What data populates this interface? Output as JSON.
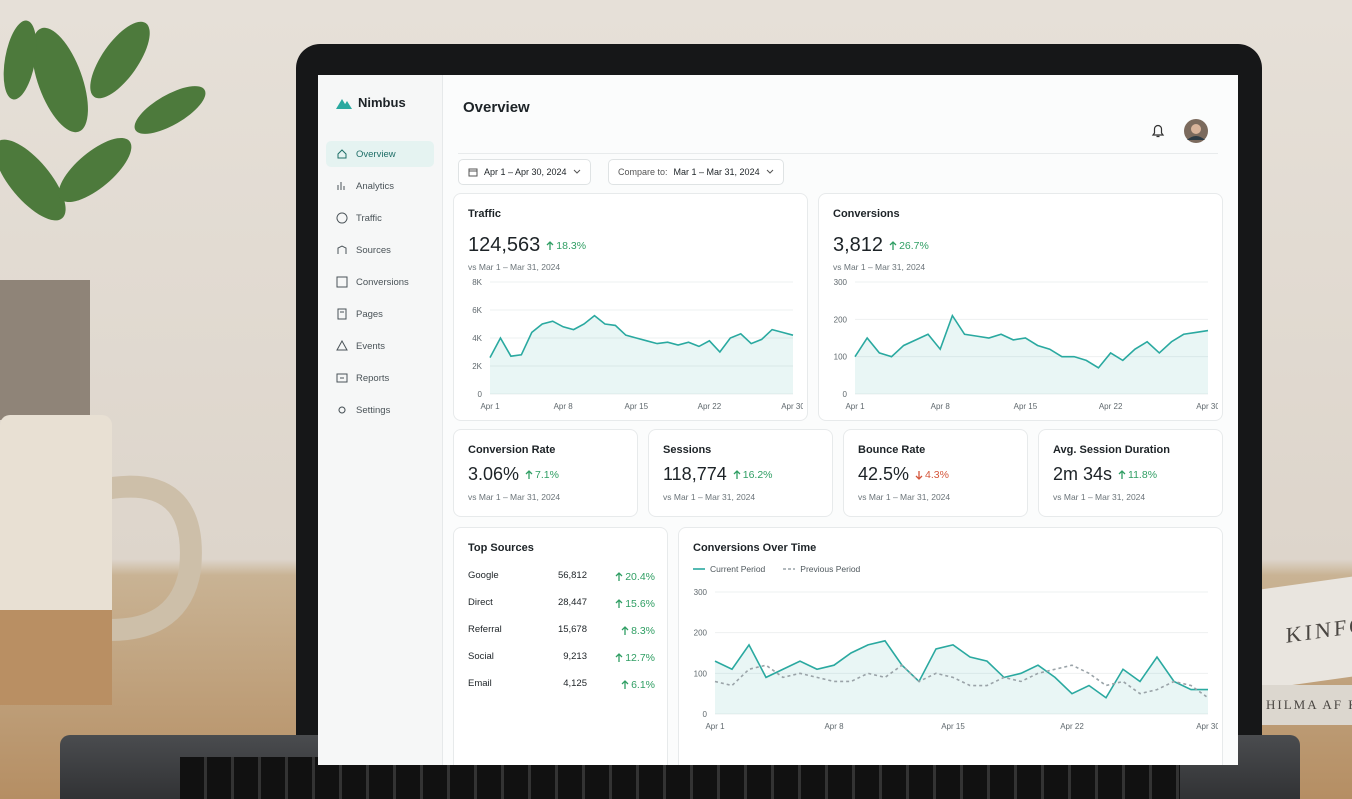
{
  "brand": "Nimbus",
  "nav": [
    "Overview",
    "Analytics",
    "Traffic",
    "Sources",
    "Conversions",
    "Pages",
    "Events",
    "Reports",
    "Settings"
  ],
  "page_title": "Overview",
  "filters": {
    "date_range": "Apr 1 – Apr 30, 2024",
    "compare_label": "Compare to:",
    "compare_range": "Mar 1 – Mar 31, 2024"
  },
  "traffic": {
    "type": "line",
    "title": "Traffic",
    "value": "124,563",
    "change": "18.3%",
    "direction": "up",
    "comparison": "vs Mar 1 – Mar 31, 2024",
    "color": "#2aa9a0",
    "x": [
      1,
      2,
      3,
      4,
      5,
      6,
      7,
      8,
      9,
      10,
      11,
      12,
      13,
      14,
      15,
      16,
      17,
      18,
      19,
      20,
      21,
      22,
      23,
      24,
      25,
      26,
      27,
      28,
      29,
      30
    ],
    "values": [
      2600,
      4000,
      2700,
      2800,
      4400,
      5000,
      5200,
      4800,
      4600,
      5000,
      5600,
      5000,
      4900,
      4200,
      4000,
      3800,
      3600,
      3700,
      3500,
      3700,
      3400,
      3800,
      3000,
      4000,
      4300,
      3600,
      3900,
      4600,
      4400,
      4200
    ],
    "xlim": [
      1,
      30
    ],
    "xticks": [
      {
        "value": 1,
        "label": "Apr 1"
      },
      {
        "value": 8,
        "label": "Apr 8"
      },
      {
        "value": 15,
        "label": "Apr 15"
      },
      {
        "value": 22,
        "label": "Apr 22"
      },
      {
        "value": 30,
        "label": "Apr 30"
      }
    ],
    "ylim": [
      0,
      8000
    ],
    "yticks": [
      0,
      {
        "value": 2000,
        "label": "2K"
      },
      {
        "value": 4000,
        "label": "4K"
      },
      {
        "value": 6000,
        "label": "6K"
      },
      {
        "value": 8000,
        "label": "8K"
      }
    ]
  },
  "conversions": {
    "type": "line",
    "title": "Conversions",
    "value": "3,812",
    "change": "26.7%",
    "direction": "up",
    "comparison": "vs Mar 1 – Mar 31, 2024",
    "color": "#2aa9a0",
    "x": [
      1,
      2,
      3,
      4,
      5,
      6,
      7,
      8,
      9,
      10,
      11,
      12,
      13,
      14,
      15,
      16,
      17,
      18,
      19,
      20,
      21,
      22,
      23,
      24,
      25,
      26,
      27,
      28,
      29,
      30
    ],
    "values": [
      100,
      150,
      110,
      100,
      130,
      145,
      160,
      120,
      210,
      160,
      155,
      150,
      160,
      145,
      150,
      130,
      120,
      100,
      100,
      90,
      70,
      110,
      90,
      120,
      140,
      110,
      140,
      160,
      165,
      170
    ],
    "xlim": [
      1,
      30
    ],
    "xticks": [
      {
        "value": 1,
        "label": "Apr 1"
      },
      {
        "value": 8,
        "label": "Apr 8"
      },
      {
        "value": 15,
        "label": "Apr 15"
      },
      {
        "value": 22,
        "label": "Apr 22"
      },
      {
        "value": 30,
        "label": "Apr 30"
      }
    ],
    "ylim": [
      0,
      300
    ],
    "yticks": [
      0,
      100,
      200,
      300
    ]
  },
  "kpis": [
    {
      "title": "Conversion Rate",
      "value": "3.06%",
      "change": "7.1%",
      "direction": "up",
      "comparison": "vs Mar 1 – Mar 31, 2024"
    },
    {
      "title": "Sessions",
      "value": "118,774",
      "change": "16.2%",
      "direction": "up",
      "comparison": "vs Mar 1 – Mar 31, 2024"
    },
    {
      "title": "Bounce Rate",
      "value": "42.5%",
      "change": "4.3%",
      "direction": "down",
      "comparison": "vs Mar 1 – Mar 31, 2024"
    },
    {
      "title": "Avg. Session Duration",
      "value": "2m 34s",
      "change": "11.8%",
      "direction": "up",
      "comparison": "vs Mar 1 – Mar 31, 2024"
    }
  ],
  "top_sources": {
    "title": "Top Sources",
    "rows": [
      {
        "name": "Google",
        "value": "56,812",
        "change": "20.4%"
      },
      {
        "name": "Direct",
        "value": "28,447",
        "change": "15.6%"
      },
      {
        "name": "Referral",
        "value": "15,678",
        "change": "8.3%"
      },
      {
        "name": "Social",
        "value": "9,213",
        "change": "12.7%"
      },
      {
        "name": "Email",
        "value": "4,125",
        "change": "6.1%"
      }
    ]
  },
  "conversions_over_time": {
    "type": "line",
    "title": "Conversions Over Time",
    "x": [
      1,
      2,
      3,
      4,
      5,
      6,
      7,
      8,
      9,
      10,
      11,
      12,
      13,
      14,
      15,
      16,
      17,
      18,
      19,
      20,
      21,
      22,
      23,
      24,
      25,
      26,
      27,
      28,
      29,
      30
    ],
    "series": [
      {
        "name": "Current Period",
        "color": "#2aa9a0",
        "dashed": false,
        "values": [
          130,
          110,
          170,
          90,
          110,
          130,
          110,
          120,
          150,
          170,
          180,
          120,
          80,
          160,
          170,
          140,
          130,
          90,
          100,
          120,
          90,
          50,
          70,
          40,
          110,
          80,
          140,
          80,
          60,
          60
        ]
      },
      {
        "name": "Previous Period",
        "color": "#9aa3a8",
        "dashed": true,
        "values": [
          80,
          70,
          110,
          120,
          90,
          100,
          90,
          80,
          80,
          100,
          90,
          120,
          80,
          100,
          90,
          70,
          70,
          90,
          80,
          100,
          110,
          120,
          100,
          70,
          80,
          50,
          60,
          80,
          70,
          40
        ]
      }
    ],
    "xlim": [
      1,
      30
    ],
    "xticks": [
      {
        "value": 1,
        "label": "Apr 1"
      },
      {
        "value": 8,
        "label": "Apr 8"
      },
      {
        "value": 15,
        "label": "Apr 15"
      },
      {
        "value": 22,
        "label": "Apr 22"
      },
      {
        "value": 30,
        "label": "Apr 30"
      }
    ],
    "ylim": [
      0,
      300
    ],
    "yticks": [
      0,
      100,
      200,
      300
    ]
  },
  "device": "MacBook Pro",
  "books": [
    "KINFO",
    "HILMA AF KL"
  ]
}
